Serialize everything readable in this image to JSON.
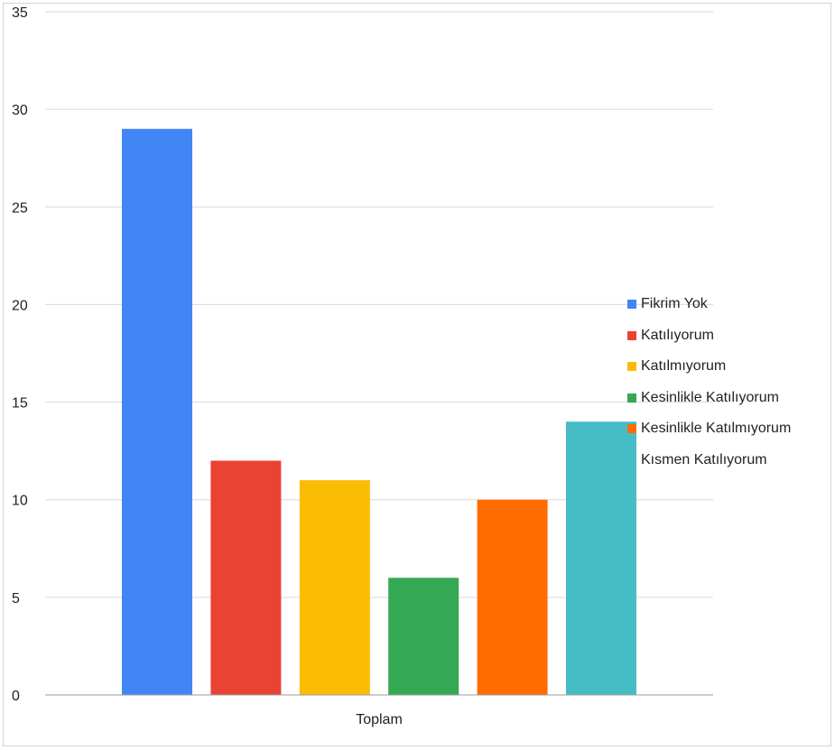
{
  "chart_data": {
    "type": "bar",
    "title": "",
    "xlabel": "",
    "ylabel": "",
    "categories": [
      "Toplam"
    ],
    "ylim": [
      0,
      35
    ],
    "yticks": [
      0,
      5,
      10,
      15,
      20,
      25,
      30,
      35
    ],
    "grid": true,
    "legend_position": "right",
    "series": [
      {
        "name": "Fikrim Yok",
        "values": [
          29
        ],
        "color": "#4285F4"
      },
      {
        "name": "Katılıyorum",
        "values": [
          12
        ],
        "color": "#EA4335"
      },
      {
        "name": "Katılmıyorum",
        "values": [
          11
        ],
        "color": "#FBBC04"
      },
      {
        "name": "Kesinlikle Katılıyorum",
        "values": [
          6
        ],
        "color": "#34A853"
      },
      {
        "name": "Kesinlikle Katılmıyorum",
        "values": [
          10
        ],
        "color": "#FF6D01"
      },
      {
        "name": "Kısmen Katılıyorum",
        "values": [
          14
        ],
        "color": "#46BDC6"
      }
    ]
  }
}
